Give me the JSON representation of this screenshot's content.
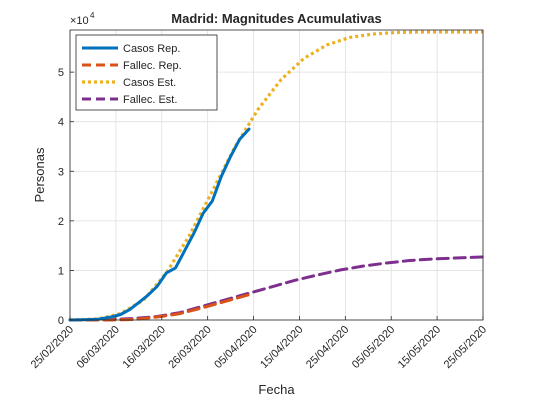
{
  "chart_data": {
    "type": "line",
    "title": "Madrid: Magnitudes Acumulativas",
    "xlabel": "Fecha",
    "ylabel": "Personas",
    "y_exponent_label": "×10",
    "y_exponent_power": "4",
    "ylim": [
      0,
      58500
    ],
    "xlim": [
      "2020-02-25",
      "2020-05-25"
    ],
    "y_ticks": [
      0,
      10000,
      20000,
      30000,
      40000,
      50000
    ],
    "y_tick_labels": [
      "0",
      "1",
      "2",
      "3",
      "4",
      "5"
    ],
    "x_ticks": [
      "2020-02-25",
      "2020-03-06",
      "2020-03-16",
      "2020-03-26",
      "2020-04-05",
      "2020-04-15",
      "2020-04-25",
      "2020-05-05",
      "2020-05-15",
      "2020-05-25"
    ],
    "x_tick_labels": [
      "25/02/2020",
      "06/03/2020",
      "16/03/2020",
      "26/03/2020",
      "05/04/2020",
      "15/04/2020",
      "25/04/2020",
      "05/05/2020",
      "15/05/2020",
      "25/05/2020"
    ],
    "grid": true,
    "legend_position": "top-left",
    "series": [
      {
        "name": "Casos Rep.",
        "color": "#0072BD",
        "style": "solid",
        "x": [
          "2020-02-25",
          "2020-02-28",
          "2020-03-02",
          "2020-03-05",
          "2020-03-07",
          "2020-03-09",
          "2020-03-11",
          "2020-03-13",
          "2020-03-15",
          "2020-03-17",
          "2020-03-19",
          "2020-03-21",
          "2020-03-23",
          "2020-03-25",
          "2020-03-27",
          "2020-03-29",
          "2020-03-31",
          "2020-04-02",
          "2020-04-04"
        ],
        "y": [
          0,
          50,
          150,
          600,
          1100,
          2100,
          3500,
          5000,
          6800,
          9500,
          10500,
          14000,
          17500,
          21500,
          24000,
          29000,
          33000,
          36500,
          38500
        ]
      },
      {
        "name": "Fallec. Rep.",
        "color": "#D95319",
        "style": "dashed",
        "x": [
          "2020-02-25",
          "2020-03-05",
          "2020-03-10",
          "2020-03-15",
          "2020-03-20",
          "2020-03-25",
          "2020-03-30",
          "2020-04-04"
        ],
        "y": [
          0,
          0,
          100,
          600,
          1300,
          2500,
          3800,
          5100
        ]
      },
      {
        "name": "Casos Est.",
        "color": "#EDB120",
        "style": "dotted",
        "x": [
          "2020-02-25",
          "2020-03-02",
          "2020-03-07",
          "2020-03-12",
          "2020-03-17",
          "2020-03-22",
          "2020-03-27",
          "2020-04-01",
          "2020-04-06",
          "2020-04-11",
          "2020-04-16",
          "2020-04-21",
          "2020-04-26",
          "2020-05-01",
          "2020-05-06",
          "2020-05-11",
          "2020-05-16",
          "2020-05-25"
        ],
        "y": [
          0,
          200,
          1300,
          4000,
          9500,
          17000,
          26000,
          35000,
          42500,
          48500,
          52800,
          55500,
          57000,
          57700,
          58000,
          58100,
          58100,
          58100
        ]
      },
      {
        "name": "Fallec. Est.",
        "color": "#7E2F8E",
        "style": "dashed",
        "x": [
          "2020-02-25",
          "2020-03-05",
          "2020-03-10",
          "2020-03-15",
          "2020-03-20",
          "2020-03-25",
          "2020-03-30",
          "2020-04-04",
          "2020-04-09",
          "2020-04-14",
          "2020-04-19",
          "2020-04-24",
          "2020-04-29",
          "2020-05-04",
          "2020-05-09",
          "2020-05-14",
          "2020-05-19",
          "2020-05-25"
        ],
        "y": [
          0,
          100,
          300,
          700,
          1500,
          2800,
          4100,
          5400,
          6700,
          8000,
          9100,
          10100,
          10900,
          11500,
          12000,
          12300,
          12500,
          12700
        ]
      }
    ]
  }
}
